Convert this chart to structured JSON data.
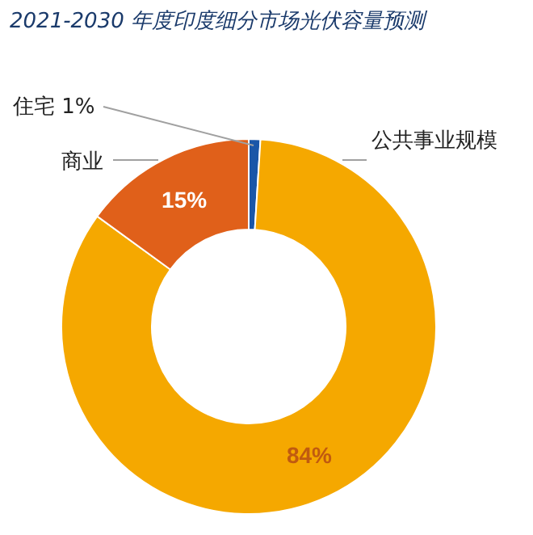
{
  "chart_data": {
    "type": "donut",
    "title": "2021-2030 年度印度细分市场光伏容量预测",
    "categories": [
      "住宅",
      "公共事业规模",
      "商业"
    ],
    "values": [
      1,
      84,
      15
    ],
    "value_labels": [
      "1%",
      "84%",
      "15%"
    ],
    "colors": [
      "#1a56a8",
      "#f5a800",
      "#e0601a"
    ]
  }
}
